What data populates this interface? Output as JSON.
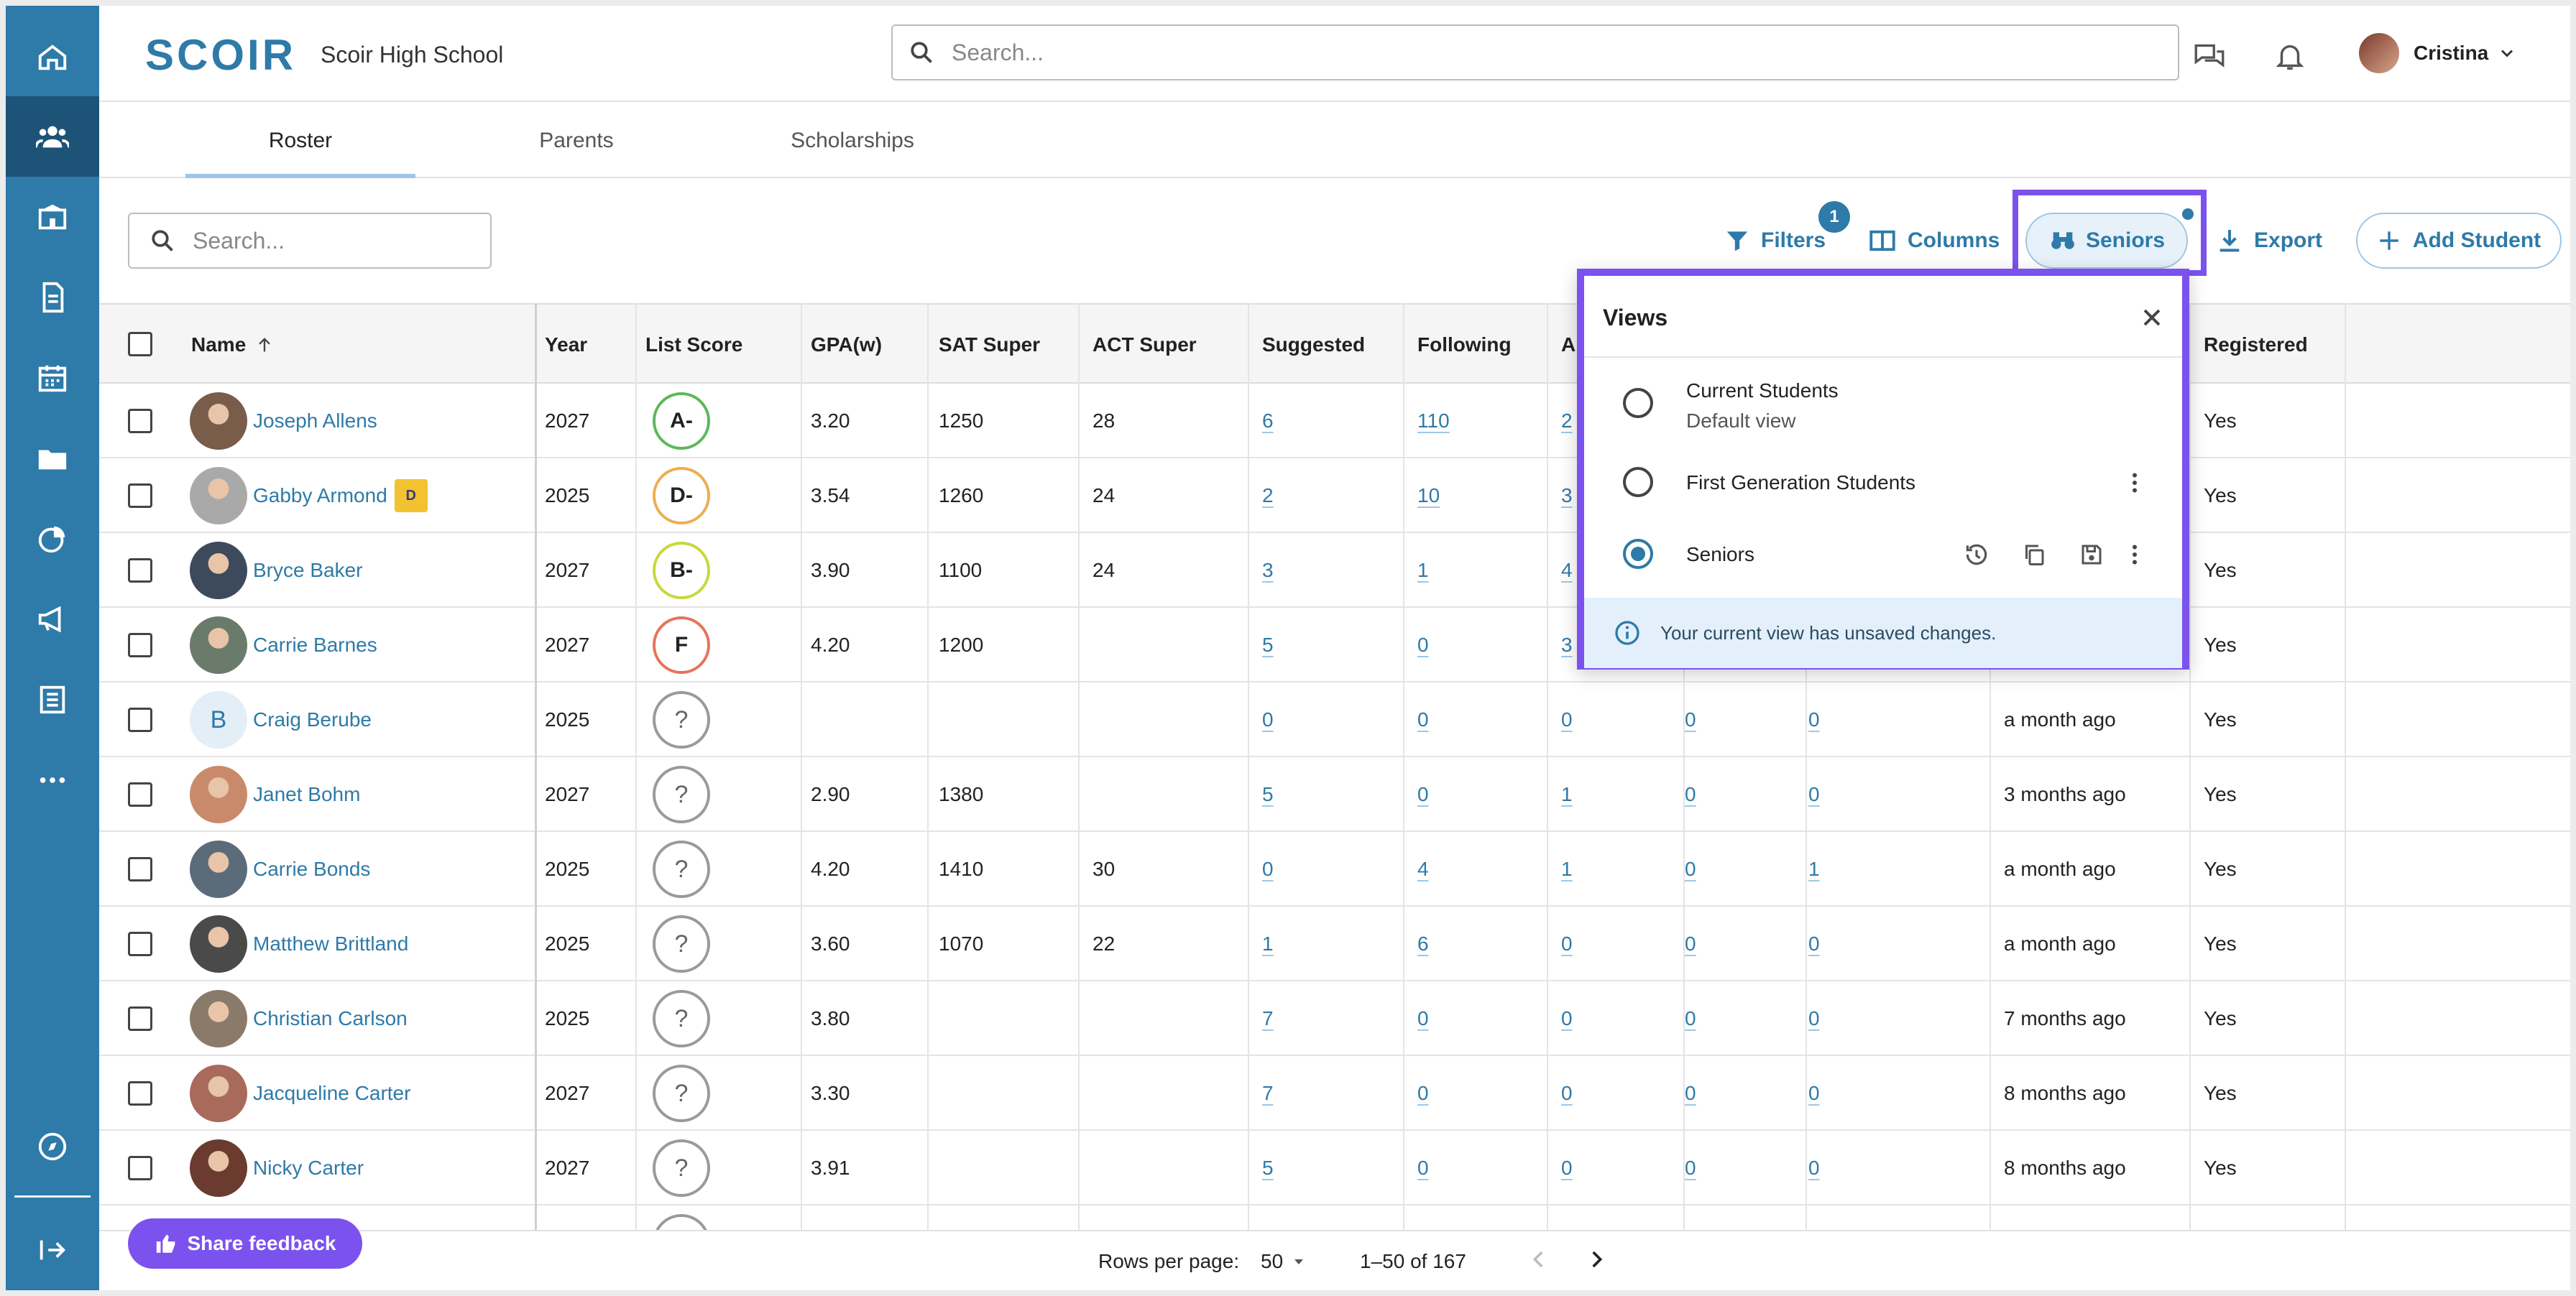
{
  "app": {
    "logo": "SCOIR",
    "school": "Scoir High School"
  },
  "header": {
    "search_placeholder": "Search...",
    "user_name": "Cristina"
  },
  "tabs": [
    "Roster",
    "Parents",
    "Scholarships"
  ],
  "toolbar": {
    "search_placeholder": "Search...",
    "filters_label": "Filters",
    "filters_badge": "1",
    "columns_label": "Columns",
    "view_label": "Seniors",
    "export_label": "Export",
    "add_label": "Add Student"
  },
  "columns": [
    "Name",
    "Year",
    "List Score",
    "GPA(w)",
    "SAT Super",
    "ACT Super",
    "Suggested",
    "Following",
    "A",
    "Registered"
  ],
  "rows": [
    {
      "name": "Joseph Allens",
      "year": "2027",
      "score": "A-",
      "score_color": "#5cb85c",
      "gpa": "3.20",
      "sat": "1250",
      "act": "28",
      "suggested": "6",
      "following": "110",
      "col8": "2",
      "col9": "",
      "col10": "",
      "last": "",
      "registered": "Yes"
    },
    {
      "name": "Gabby Armond",
      "year": "2025",
      "score": "D-",
      "score_color": "#f0ad4e",
      "gpa": "3.54",
      "sat": "1260",
      "act": "24",
      "suggested": "2",
      "following": "10",
      "col8": "3",
      "col9": "",
      "col10": "",
      "last": "",
      "registered": "Yes",
      "badge": "Drexel"
    },
    {
      "name": "Bryce Baker",
      "year": "2027",
      "score": "B-",
      "score_color": "#c8d83a",
      "gpa": "3.90",
      "sat": "1100",
      "act": "24",
      "suggested": "3",
      "following": "1",
      "col8": "4",
      "col9": "",
      "col10": "",
      "last": "",
      "registered": "Yes"
    },
    {
      "name": "Carrie Barnes",
      "year": "2027",
      "score": "F",
      "score_color": "#e8735d",
      "gpa": "4.20",
      "sat": "1200",
      "act": "",
      "suggested": "5",
      "following": "0",
      "col8": "3",
      "col9": "",
      "col10": "",
      "last": "",
      "registered": "Yes"
    },
    {
      "name": "Craig Berube",
      "year": "2025",
      "score": "?",
      "score_color": "#9a9a9a",
      "gpa": "",
      "sat": "",
      "act": "",
      "suggested": "0",
      "following": "0",
      "col8": "0",
      "col9": "0",
      "col10": "0",
      "last": "a month ago",
      "registered": "Yes",
      "initial": "B"
    },
    {
      "name": "Janet Bohm",
      "year": "2027",
      "score": "?",
      "score_color": "#9a9a9a",
      "gpa": "2.90",
      "sat": "1380",
      "act": "",
      "suggested": "5",
      "following": "0",
      "col8": "1",
      "col9": "0",
      "col10": "0",
      "last": "3 months ago",
      "registered": "Yes"
    },
    {
      "name": "Carrie Bonds",
      "year": "2025",
      "score": "?",
      "score_color": "#9a9a9a",
      "gpa": "4.20",
      "sat": "1410",
      "act": "30",
      "suggested": "0",
      "following": "4",
      "col8": "1",
      "col9": "0",
      "col10": "1",
      "last": "a month ago",
      "registered": "Yes"
    },
    {
      "name": "Matthew Brittland",
      "year": "2025",
      "score": "?",
      "score_color": "#9a9a9a",
      "gpa": "3.60",
      "sat": "1070",
      "act": "22",
      "suggested": "1",
      "following": "6",
      "col8": "0",
      "col9": "0",
      "col10": "0",
      "last": "a month ago",
      "registered": "Yes"
    },
    {
      "name": "Christian Carlson",
      "year": "2025",
      "score": "?",
      "score_color": "#9a9a9a",
      "gpa": "3.80",
      "sat": "",
      "act": "",
      "suggested": "7",
      "following": "0",
      "col8": "0",
      "col9": "0",
      "col10": "0",
      "last": "7 months ago",
      "registered": "Yes"
    },
    {
      "name": "Jacqueline Carter",
      "year": "2027",
      "score": "?",
      "score_color": "#9a9a9a",
      "gpa": "3.30",
      "sat": "",
      "act": "",
      "suggested": "7",
      "following": "0",
      "col8": "0",
      "col9": "0",
      "col10": "0",
      "last": "8 months ago",
      "registered": "Yes"
    },
    {
      "name": "Nicky Carter",
      "year": "2027",
      "score": "?",
      "score_color": "#9a9a9a",
      "gpa": "3.91",
      "sat": "",
      "act": "",
      "suggested": "5",
      "following": "0",
      "col8": "0",
      "col9": "0",
      "col10": "0",
      "last": "8 months ago",
      "registered": "Yes"
    }
  ],
  "footer": {
    "feedback_label": "Share feedback",
    "rows_label": "Rows per page:",
    "rows_value": "50",
    "range": "1–50 of 167"
  },
  "views_popup": {
    "title": "Views",
    "items": [
      {
        "label": "Current Students",
        "sub": "Default view",
        "selected": false
      },
      {
        "label": "First Generation Students",
        "selected": false
      },
      {
        "label": "Seniors",
        "selected": true
      }
    ],
    "note": "Your current view has unsaved changes."
  },
  "colors": {
    "brand": "#2e7aa8",
    "sidebar_active": "#1c5377",
    "highlight": "#7b52ee"
  }
}
